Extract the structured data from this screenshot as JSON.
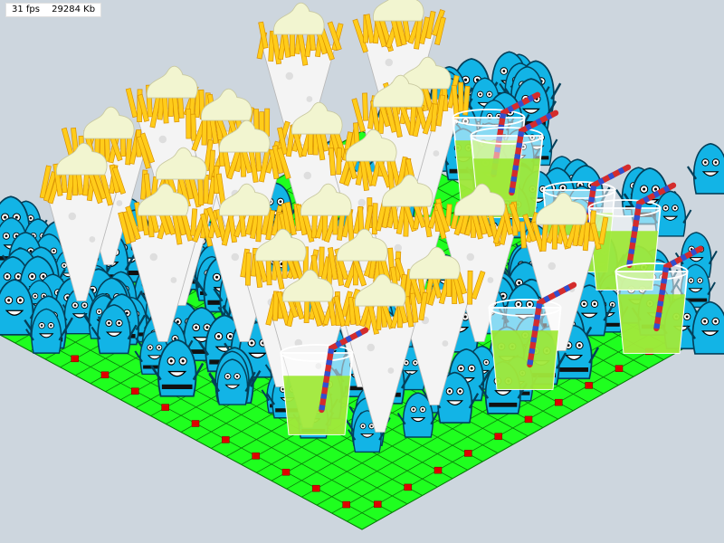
{
  "hud": {
    "fps": "31 fps",
    "memory": "29284 Kb"
  },
  "scene": {
    "background_color": "#cdd6de",
    "floor_color": "#1fff1f",
    "floor_line_color": "#0a7a0a",
    "marker_color": "#e00000",
    "crowd_color": "#12b4e6",
    "fries_color": "#ffcc1a",
    "ice_cream_color": "#f2f5d0",
    "cone_color": "#f4f4f4",
    "drink_color": "#9be830",
    "straw_color": "#d42c2c",
    "straw_stripe_color": "#3050d0",
    "icons": [
      "fries-cone-icon",
      "soda-cup-icon",
      "blue-monster-icon",
      "red-marker-icon"
    ]
  }
}
